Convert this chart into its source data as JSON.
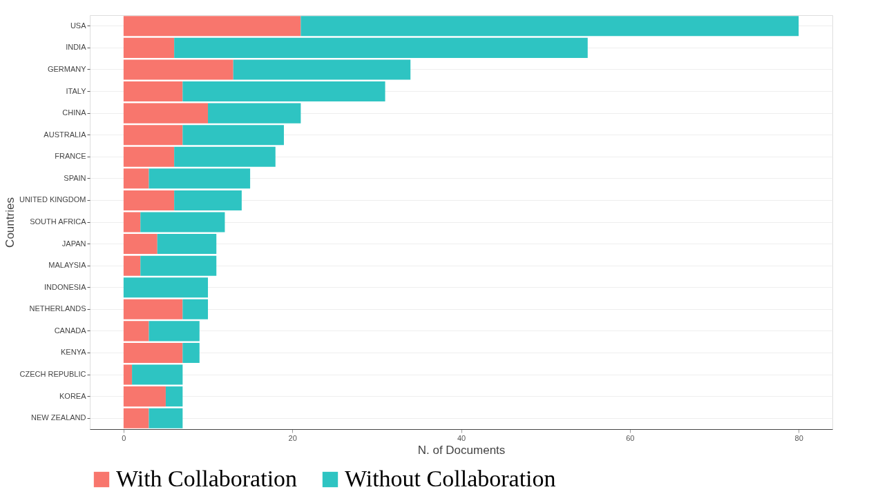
{
  "chart_data": {
    "type": "bar",
    "orientation": "horizontal",
    "stacked": true,
    "xlabel": "N. of Documents",
    "ylabel": "Countries",
    "categories": [
      "USA",
      "INDIA",
      "GERMANY",
      "ITALY",
      "CHINA",
      "AUSTRALIA",
      "FRANCE",
      "SPAIN",
      "UNITED KINGDOM",
      "SOUTH AFRICA",
      "JAPAN",
      "MALAYSIA",
      "INDONESIA",
      "NETHERLANDS",
      "CANADA",
      "KENYA",
      "CZECH REPUBLIC",
      "KOREA",
      "NEW ZEALAND"
    ],
    "series": [
      {
        "name": "With Collaboration",
        "color": "#f8766d",
        "values": [
          21,
          6,
          13,
          7,
          10,
          7,
          6,
          3,
          6,
          2,
          4,
          2,
          0,
          7,
          3,
          7,
          1,
          5,
          3
        ]
      },
      {
        "name": "Without Collaboration",
        "color": "#2ec4c2",
        "values": [
          59,
          49,
          21,
          24,
          11,
          12,
          12,
          12,
          8,
          10,
          7,
          9,
          10,
          3,
          6,
          2,
          6,
          2,
          4
        ]
      }
    ],
    "xlim": [
      -4,
      84
    ],
    "xticks": [
      0,
      20,
      40,
      60,
      80
    ],
    "grid": "y",
    "legend": "bottom"
  }
}
